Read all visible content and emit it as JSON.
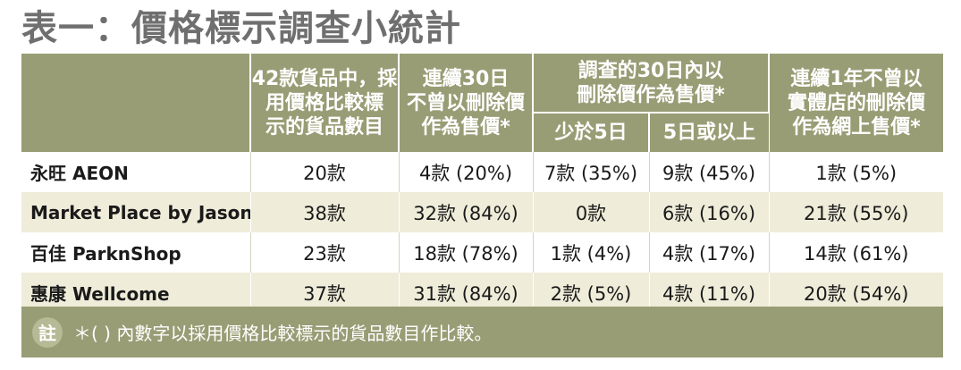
{
  "title": "表一：價格標示調查小統計",
  "header": {
    "col1": [
      "42款貨品中，採",
      "用價格比較標",
      "示的貨品數目"
    ],
    "col2": [
      "連續30日",
      "不曾以刪除價",
      "作為售價*"
    ],
    "group": [
      "調查的30日內以",
      "刪除價作為售價*"
    ],
    "sub1": "少於5日",
    "sub2": "5日或以上",
    "col5": [
      "連續1年不曾以",
      "實體店的刪除價",
      "作為網上售價*"
    ]
  },
  "rows": [
    {
      "name": "永旺 AEON",
      "c1": "20款",
      "c2": "4款 (20%)",
      "c3": "7款 (35%)",
      "c4": "9款 (45%)",
      "c5": "1款 (5%)"
    },
    {
      "name": "Market Place by Jasons",
      "c1": "38款",
      "c2": "32款 (84%)",
      "c3": "0款",
      "c4": "6款 (16%)",
      "c5": "21款 (55%)"
    },
    {
      "name": "百佳 ParknShop",
      "c1": "23款",
      "c2": "18款 (78%)",
      "c3": "1款 (4%)",
      "c4": "4款 (17%)",
      "c5": "14款 (61%)"
    },
    {
      "name": "惠康 Wellcome",
      "c1": "37款",
      "c2": "31款 (84%)",
      "c3": "2款 (5%)",
      "c4": "4款 (11%)",
      "c5": "20款 (54%)"
    }
  ],
  "note": {
    "icon": "註",
    "text": "＊( ) 內數字以採用價格比較標示的貨品數目作比較。"
  }
}
